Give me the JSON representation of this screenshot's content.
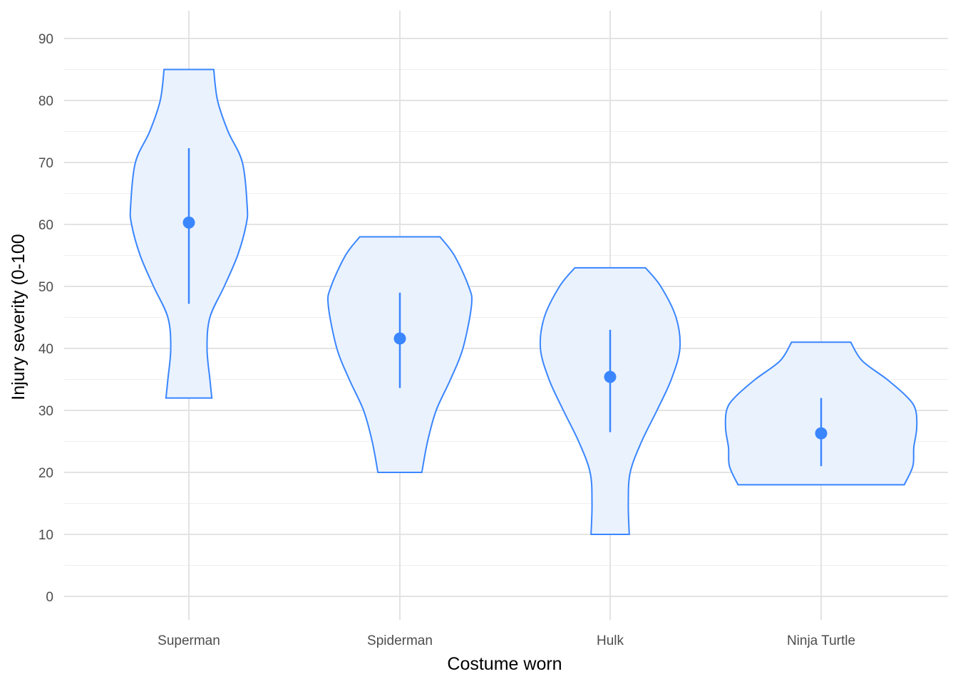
{
  "chart_data": {
    "type": "violin",
    "title": "",
    "xlabel": "Costume worn",
    "ylabel": "Injury severity (0-100",
    "ylim": [
      -4,
      95
    ],
    "yticks": [
      0,
      10,
      20,
      30,
      40,
      50,
      60,
      70,
      80,
      90
    ],
    "grid": true,
    "colors": {
      "line": "#3a86ff",
      "fill": "#eaf2fe",
      "grid_major": "#e3e3e3",
      "grid_minor": "#efefef"
    },
    "categories": [
      "Superman",
      "Spiderman",
      "Hulk",
      "Ninja Turtle"
    ],
    "series": [
      {
        "category": "Superman",
        "min": 32,
        "max": 85,
        "mean": 60.3,
        "ci": [
          47.2,
          72.3
        ],
        "density": [
          [
            85,
            0.26
          ],
          [
            80,
            0.3
          ],
          [
            75,
            0.41
          ],
          [
            70,
            0.56
          ],
          [
            63,
            0.61
          ],
          [
            60,
            0.6
          ],
          [
            55,
            0.51
          ],
          [
            50,
            0.37
          ],
          [
            45,
            0.22
          ],
          [
            40,
            0.19
          ],
          [
            35,
            0.22
          ],
          [
            32,
            0.24
          ]
        ]
      },
      {
        "category": "Spiderman",
        "min": 20,
        "max": 58,
        "mean": 41.6,
        "ci": [
          33.6,
          49.0
        ],
        "density": [
          [
            58,
            0.42
          ],
          [
            55,
            0.57
          ],
          [
            50,
            0.72
          ],
          [
            47,
            0.75
          ],
          [
            40,
            0.66
          ],
          [
            35,
            0.53
          ],
          [
            30,
            0.38
          ],
          [
            25,
            0.29
          ],
          [
            20,
            0.23
          ]
        ]
      },
      {
        "category": "Hulk",
        "min": 10,
        "max": 53,
        "mean": 35.4,
        "ci": [
          26.5,
          43.0
        ],
        "density": [
          [
            53,
            0.37
          ],
          [
            50,
            0.53
          ],
          [
            45,
            0.69
          ],
          [
            40,
            0.73
          ],
          [
            35,
            0.64
          ],
          [
            30,
            0.49
          ],
          [
            25,
            0.33
          ],
          [
            20,
            0.21
          ],
          [
            15,
            0.19
          ],
          [
            10,
            0.2
          ]
        ]
      },
      {
        "category": "Ninja Turtle",
        "min": 18,
        "max": 41,
        "mean": 26.3,
        "ci": [
          21.0,
          32.0
        ],
        "density": [
          [
            41,
            0.31
          ],
          [
            38,
            0.43
          ],
          [
            35,
            0.69
          ],
          [
            32,
            0.91
          ],
          [
            30,
            0.99
          ],
          [
            27,
            1.0
          ],
          [
            24,
            0.97
          ],
          [
            21,
            0.96
          ],
          [
            18,
            0.87
          ]
        ]
      }
    ]
  }
}
